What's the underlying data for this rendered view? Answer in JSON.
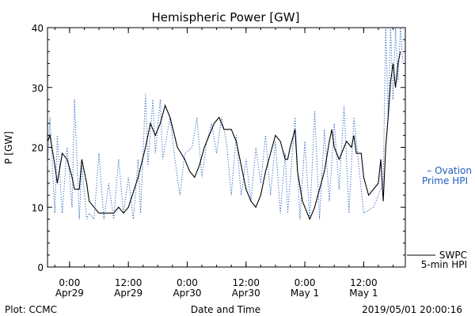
{
  "chart_data": {
    "type": "line",
    "title": "Hemispheric Power [GW]",
    "ylabel": "P [GW]",
    "xlabel": "Date and Time",
    "ylim": [
      0,
      40
    ],
    "xlim": [
      "2019-04-28 19:30",
      "2019-05-01 20:30"
    ],
    "y_ticks": [
      "0",
      "10",
      "20",
      "30",
      "40"
    ],
    "x_ticks": [
      {
        "t": "2019-04-29 00:00",
        "line1": "0:00",
        "line2": "Apr29"
      },
      {
        "t": "2019-04-29 12:00",
        "line1": "12:00",
        "line2": "Apr29"
      },
      {
        "t": "2019-04-30 00:00",
        "line1": "0:00",
        "line2": "Apr30"
      },
      {
        "t": "2019-04-30 12:00",
        "line1": "12:00",
        "line2": "Apr30"
      },
      {
        "t": "2019-05-01 00:00",
        "line1": "0:00",
        "line2": "May 1"
      },
      {
        "t": "2019-05-01 12:00",
        "line1": "12:00",
        "line2": "May 1"
      }
    ],
    "grid": false,
    "legend_placement": "right",
    "series": [
      {
        "name": "SWPC 5-min HPI",
        "legend_lines": [
          "SWPC",
          "5-min HPI"
        ],
        "style": "solid",
        "color": "#000000",
        "points": [
          [
            "2019-04-28 19:30",
            21
          ],
          [
            "2019-04-28 20:00",
            22
          ],
          [
            "2019-04-28 21:00",
            17
          ],
          [
            "2019-04-28 21:30",
            14
          ],
          [
            "2019-04-28 22:30",
            19
          ],
          [
            "2019-04-28 23:30",
            18
          ],
          [
            "2019-04-29 00:30",
            15
          ],
          [
            "2019-04-29 01:00",
            13
          ],
          [
            "2019-04-29 02:00",
            13
          ],
          [
            "2019-04-29 02:30",
            18
          ],
          [
            "2019-04-29 03:30",
            14
          ],
          [
            "2019-04-29 04:00",
            11
          ],
          [
            "2019-04-29 05:00",
            10
          ],
          [
            "2019-04-29 06:00",
            9
          ],
          [
            "2019-04-29 09:00",
            9
          ],
          [
            "2019-04-29 10:00",
            10
          ],
          [
            "2019-04-29 11:00",
            9
          ],
          [
            "2019-04-29 12:00",
            10
          ],
          [
            "2019-04-29 14:00",
            15
          ],
          [
            "2019-04-29 15:30",
            20
          ],
          [
            "2019-04-29 16:30",
            24
          ],
          [
            "2019-04-29 17:30",
            22
          ],
          [
            "2019-04-29 18:30",
            24
          ],
          [
            "2019-04-29 19:30",
            27
          ],
          [
            "2019-04-29 20:30",
            25
          ],
          [
            "2019-04-29 22:00",
            20
          ],
          [
            "2019-04-29 23:30",
            18
          ],
          [
            "2019-04-30 00:30",
            16
          ],
          [
            "2019-04-30 01:30",
            15
          ],
          [
            "2019-04-30 02:30",
            17
          ],
          [
            "2019-04-30 03:30",
            20
          ],
          [
            "2019-04-30 04:30",
            22
          ],
          [
            "2019-04-30 05:30",
            24
          ],
          [
            "2019-04-30 06:30",
            25
          ],
          [
            "2019-04-30 07:30",
            23
          ],
          [
            "2019-04-30 09:00",
            23
          ],
          [
            "2019-04-30 10:00",
            21
          ],
          [
            "2019-04-30 11:00",
            17
          ],
          [
            "2019-04-30 12:00",
            13
          ],
          [
            "2019-04-30 13:00",
            11
          ],
          [
            "2019-04-30 14:00",
            10
          ],
          [
            "2019-04-30 15:00",
            12
          ],
          [
            "2019-04-30 16:00",
            16
          ],
          [
            "2019-04-30 17:00",
            19
          ],
          [
            "2019-04-30 18:00",
            22
          ],
          [
            "2019-04-30 19:00",
            21
          ],
          [
            "2019-04-30 20:00",
            18
          ],
          [
            "2019-04-30 20:30",
            18
          ],
          [
            "2019-04-30 21:00",
            20
          ],
          [
            "2019-04-30 22:00",
            23
          ],
          [
            "2019-04-30 22:30",
            16
          ],
          [
            "2019-04-30 23:30",
            11
          ],
          [
            "2019-05-01 00:30",
            9
          ],
          [
            "2019-05-01 01:00",
            8
          ],
          [
            "2019-05-01 02:00",
            10
          ],
          [
            "2019-05-01 03:00",
            13
          ],
          [
            "2019-05-01 04:00",
            16
          ],
          [
            "2019-05-01 05:00",
            21
          ],
          [
            "2019-05-01 05:30",
            23
          ],
          [
            "2019-05-01 06:00",
            20
          ],
          [
            "2019-05-01 07:00",
            18
          ],
          [
            "2019-05-01 07:30",
            19
          ],
          [
            "2019-05-01 08:00",
            20
          ],
          [
            "2019-05-01 08:30",
            21
          ],
          [
            "2019-05-01 09:30",
            20
          ],
          [
            "2019-05-01 10:00",
            22
          ],
          [
            "2019-05-01 10:30",
            19
          ],
          [
            "2019-05-01 11:30",
            19
          ],
          [
            "2019-05-01 12:00",
            15
          ],
          [
            "2019-05-01 13:00",
            12
          ],
          [
            "2019-05-01 14:00",
            13
          ],
          [
            "2019-05-01 15:00",
            14
          ],
          [
            "2019-05-01 15:30",
            18
          ],
          [
            "2019-05-01 16:00",
            11
          ],
          [
            "2019-05-01 16:30",
            20
          ],
          [
            "2019-05-01 17:00",
            25
          ],
          [
            "2019-05-01 17:30",
            31
          ],
          [
            "2019-05-01 18:00",
            34
          ],
          [
            "2019-05-01 18:30",
            30
          ],
          [
            "2019-05-01 19:00",
            34
          ],
          [
            "2019-05-01 19:30",
            36
          ]
        ]
      },
      {
        "name": "Ovation Prime HPI",
        "legend_lines": [
          "– Ovation",
          "Prime HPI"
        ],
        "style": "dotted",
        "color": "#1f5fbf",
        "points": [
          [
            "2019-04-28 19:30",
            17
          ],
          [
            "2019-04-28 20:00",
            25
          ],
          [
            "2019-04-28 21:00",
            9
          ],
          [
            "2019-04-28 21:30",
            22
          ],
          [
            "2019-04-28 22:30",
            9
          ],
          [
            "2019-04-28 23:30",
            20
          ],
          [
            "2019-04-29 00:30",
            10
          ],
          [
            "2019-04-29 01:00",
            28
          ],
          [
            "2019-04-29 02:00",
            8
          ],
          [
            "2019-04-29 02:30",
            17
          ],
          [
            "2019-04-29 03:30",
            8
          ],
          [
            "2019-04-29 04:00",
            9
          ],
          [
            "2019-04-29 05:00",
            8
          ],
          [
            "2019-04-29 06:00",
            19
          ],
          [
            "2019-04-29 07:00",
            8
          ],
          [
            "2019-04-29 08:00",
            14
          ],
          [
            "2019-04-29 09:00",
            8
          ],
          [
            "2019-04-29 10:00",
            18
          ],
          [
            "2019-04-29 11:00",
            9
          ],
          [
            "2019-04-29 12:00",
            15
          ],
          [
            "2019-04-29 13:00",
            8
          ],
          [
            "2019-04-29 14:00",
            18
          ],
          [
            "2019-04-29 14:30",
            9
          ],
          [
            "2019-04-29 15:30",
            29
          ],
          [
            "2019-04-29 16:00",
            17
          ],
          [
            "2019-04-29 17:00",
            28
          ],
          [
            "2019-04-29 17:30",
            19
          ],
          [
            "2019-04-29 18:30",
            28
          ],
          [
            "2019-04-29 19:00",
            18
          ],
          [
            "2019-04-29 20:30",
            25
          ],
          [
            "2019-04-29 21:30",
            18
          ],
          [
            "2019-04-29 22:30",
            12
          ],
          [
            "2019-04-29 23:30",
            19
          ],
          [
            "2019-04-30 01:00",
            20
          ],
          [
            "2019-04-30 02:00",
            25
          ],
          [
            "2019-04-30 03:00",
            15
          ],
          [
            "2019-04-30 04:00",
            21
          ],
          [
            "2019-04-30 05:00",
            24
          ],
          [
            "2019-04-30 06:00",
            19
          ],
          [
            "2019-04-30 07:00",
            25
          ],
          [
            "2019-04-30 08:00",
            21
          ],
          [
            "2019-04-30 09:00",
            12
          ],
          [
            "2019-04-30 10:00",
            22
          ],
          [
            "2019-04-30 11:00",
            12
          ],
          [
            "2019-04-30 12:00",
            18
          ],
          [
            "2019-04-30 13:00",
            11
          ],
          [
            "2019-04-30 14:00",
            20
          ],
          [
            "2019-04-30 15:00",
            14
          ],
          [
            "2019-04-30 16:00",
            22
          ],
          [
            "2019-04-30 17:00",
            12
          ],
          [
            "2019-04-30 18:00",
            21
          ],
          [
            "2019-04-30 19:00",
            9
          ],
          [
            "2019-04-30 20:00",
            19
          ],
          [
            "2019-04-30 20:30",
            9
          ],
          [
            "2019-04-30 22:00",
            25
          ],
          [
            "2019-04-30 23:00",
            8
          ],
          [
            "2019-05-01 00:00",
            21
          ],
          [
            "2019-05-01 01:00",
            8
          ],
          [
            "2019-05-01 02:00",
            26
          ],
          [
            "2019-05-01 03:00",
            8
          ],
          [
            "2019-05-01 04:00",
            23
          ],
          [
            "2019-05-01 05:00",
            11
          ],
          [
            "2019-05-01 06:00",
            24
          ],
          [
            "2019-05-01 07:00",
            13
          ],
          [
            "2019-05-01 08:00",
            27
          ],
          [
            "2019-05-01 09:00",
            9
          ],
          [
            "2019-05-01 10:00",
            25
          ],
          [
            "2019-05-01 11:00",
            17
          ],
          [
            "2019-05-01 12:00",
            9
          ],
          [
            "2019-05-01 14:00",
            10
          ],
          [
            "2019-05-01 16:00",
            14
          ],
          [
            "2019-05-01 16:30",
            40
          ],
          [
            "2019-05-01 17:00",
            25
          ],
          [
            "2019-05-01 17:30",
            40
          ],
          [
            "2019-05-01 18:00",
            28
          ],
          [
            "2019-05-01 18:30",
            40
          ],
          [
            "2019-05-01 19:00",
            31
          ],
          [
            "2019-05-01 19:30",
            40
          ],
          [
            "2019-05-01 20:00",
            34
          ]
        ]
      }
    ],
    "footer": {
      "left": "Plot: CCMC",
      "right": "2019/05/01 20:00:16"
    }
  }
}
